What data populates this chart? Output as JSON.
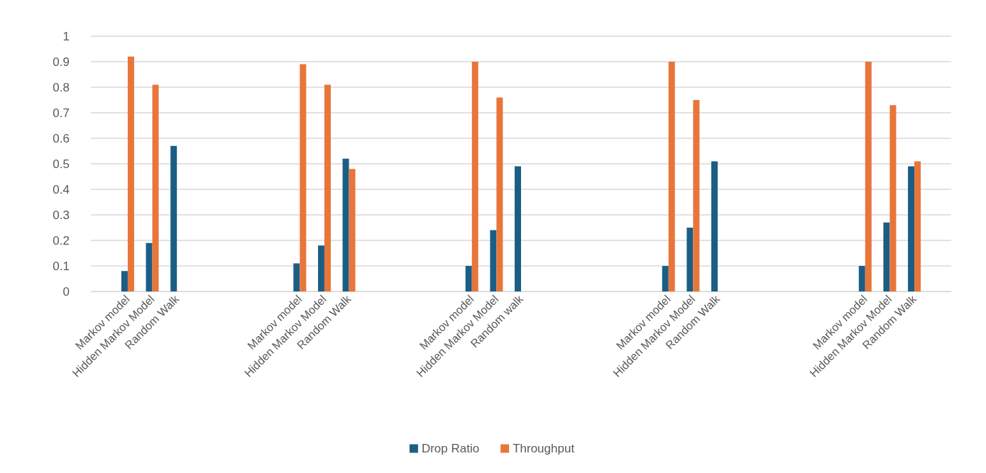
{
  "chart_data": {
    "type": "bar",
    "categories": [
      null,
      "Markov model",
      "Hidden Markov Model",
      "Random Walk",
      null,
      null,
      null,
      null,
      "Markov model",
      "Hidden Markov Model",
      "Random Walk",
      null,
      null,
      null,
      null,
      "Markov model",
      "Hidden Markov Model",
      "Random walk",
      null,
      null,
      null,
      null,
      null,
      "Markov model",
      "Hidden Markov Model",
      "Random Walk",
      null,
      null,
      null,
      null,
      null,
      "Markov model",
      "Hidden Markov Model",
      "Random Walk",
      null
    ],
    "series": [
      {
        "name": "Drop Ratio",
        "color": "#1b5e84",
        "values": [
          null,
          0.08,
          0.19,
          0.57,
          null,
          null,
          null,
          null,
          0.11,
          0.18,
          0.52,
          null,
          null,
          null,
          null,
          0.1,
          0.24,
          0.49,
          null,
          null,
          null,
          null,
          null,
          0.1,
          0.25,
          0.51,
          null,
          null,
          null,
          null,
          null,
          0.1,
          0.27,
          0.49,
          null
        ]
      },
      {
        "name": "Throughput",
        "color": "#e8763a",
        "values": [
          null,
          0.92,
          0.81,
          null,
          null,
          null,
          null,
          null,
          0.89,
          0.81,
          0.48,
          null,
          null,
          null,
          null,
          0.9,
          0.76,
          null,
          null,
          null,
          null,
          null,
          null,
          0.9,
          0.75,
          null,
          null,
          null,
          null,
          null,
          null,
          0.9,
          0.73,
          0.51,
          null
        ]
      }
    ],
    "ylim": [
      0,
      1
    ],
    "yticks": [
      0,
      0.1,
      0.2,
      0.3,
      0.4,
      0.5,
      0.6,
      0.7,
      0.8,
      0.9,
      1
    ],
    "grid": "y",
    "legend": "bottom"
  }
}
